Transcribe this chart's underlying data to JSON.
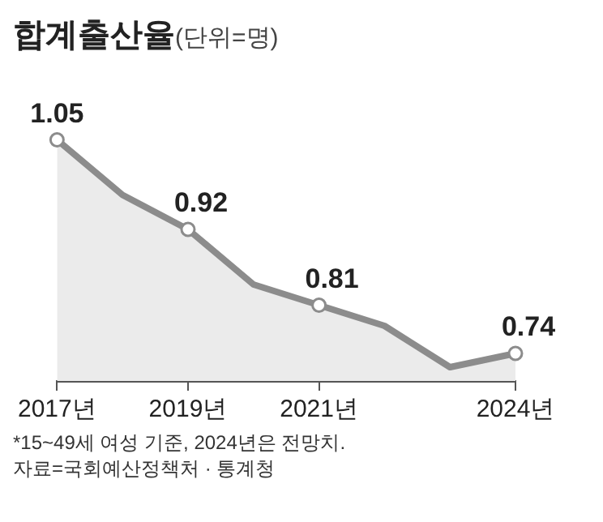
{
  "chart_data": {
    "type": "area",
    "title": "합계출산율",
    "subtitle": "(단위=명)",
    "categories": [
      "2017년",
      null,
      "2019년",
      null,
      "2021년",
      null,
      null,
      "2024년"
    ],
    "series": [
      {
        "color": "#8c8c8c",
        "values": [
          1.05,
          0.97,
          0.92,
          0.84,
          0.81,
          0.78,
          0.72,
          0.74
        ],
        "value_labels": [
          "1.05",
          null,
          "0.92",
          null,
          "0.81",
          null,
          null,
          "0.74"
        ]
      }
    ],
    "marker": "circle",
    "grid": false,
    "legend": false,
    "tick_labels": "x",
    "annotations": [
      "*15~49세 여성 기준, 2024년은 전망치.",
      "자료=국회예산정책처 · 통계청"
    ]
  }
}
